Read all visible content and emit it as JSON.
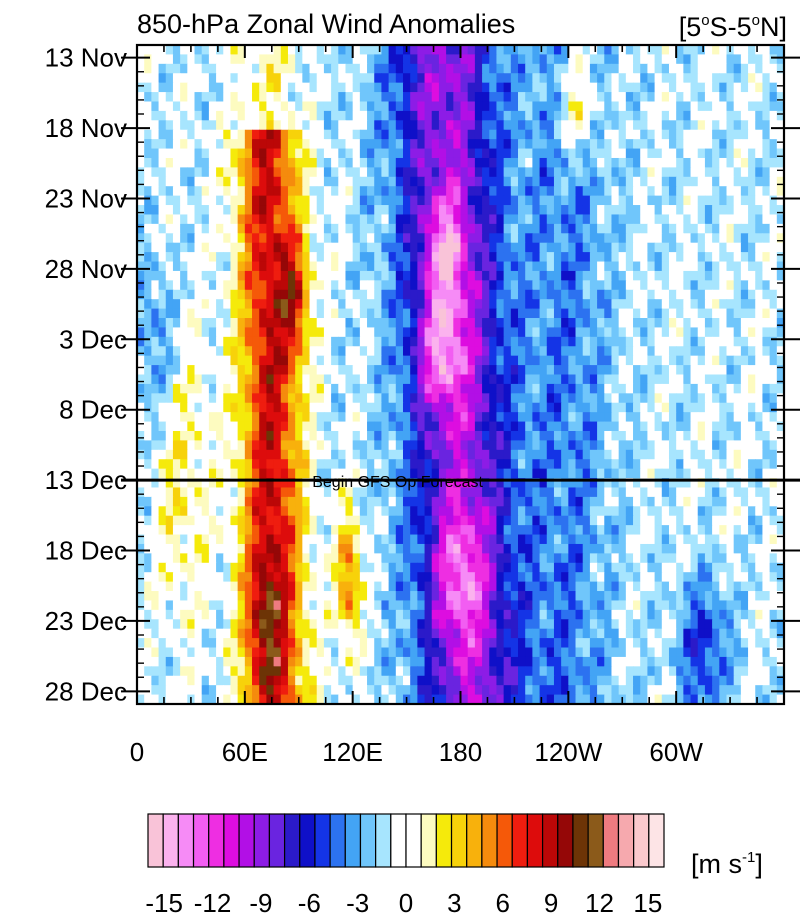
{
  "title": "850-hPa Zonal Wind Anomalies",
  "region": "[5°S-5°N]",
  "region_parts": {
    "pre": "[5",
    "lat1": "S-5",
    "post": "N]",
    "degree": "o"
  },
  "units": {
    "base": "[m s",
    "exp": "-1",
    "close": "]"
  },
  "forecast_label": "Begin GFS Op Forecast",
  "colors": {
    "bar_colors": [
      "#f9c3d8",
      "#fbb2ee",
      "#f68bf6",
      "#f25df2",
      "#ee2ee2",
      "#dd0de0",
      "#b20fe6",
      "#8d1ce6",
      "#6a24e0",
      "#2b1ac9",
      "#0f10c8",
      "#1434e6",
      "#2c72f0",
      "#43a4f5",
      "#70c6fb",
      "#a7e5fe",
      "#ffffff",
      "#ffffff",
      "#fdfbc0",
      "#f5ea0b",
      "#f7d20a",
      "#f8b10c",
      "#f58b0d",
      "#f55909",
      "#ef1d0f",
      "#dd0c0c",
      "#bb0707",
      "#950707",
      "#6d3406",
      "#8b5a1a",
      "#ef7b80",
      "#f6a9ae",
      "#fac9cd",
      "#fde4e6"
    ],
    "axis": "#000000"
  },
  "chart_data": {
    "type": "heatmap",
    "title": "850-hPa Zonal Wind Anomalies",
    "region": "[5°S-5°N]",
    "xlabel": "",
    "ylabel": "",
    "x_ticks": [
      "0",
      "60E",
      "120E",
      "180",
      "120W",
      "60W"
    ],
    "x_tick_lon": [
      0,
      60,
      120,
      180,
      240,
      300
    ],
    "xlim": [
      0,
      360
    ],
    "y_ticks": [
      "13 Nov",
      "18 Nov",
      "23 Nov",
      "28 Nov",
      "3 Dec",
      "8 Dec",
      "13 Dec",
      "18 Dec",
      "23 Dec",
      "28 Dec"
    ],
    "y_tick_day": [
      0,
      5,
      10,
      15,
      20,
      25,
      30,
      35,
      40,
      45
    ],
    "ylim_days": [
      -0.9,
      45.9
    ],
    "forecast_start_day": 30,
    "forecast_label": "Begin GFS Op Forecast",
    "colorbar": {
      "labels": [
        "-15",
        "-12",
        "-9",
        "-6",
        "-3",
        "0",
        "3",
        "6",
        "9",
        "12",
        "15"
      ],
      "label_values": [
        -15,
        -12,
        -9,
        -6,
        -3,
        0,
        3,
        6,
        9,
        12,
        15
      ],
      "min": -16,
      "max": 16,
      "step": 1,
      "units": "[m s-1]"
    },
    "features": [
      {
        "kind": "westerly",
        "peak": 12,
        "lon": [
          55,
          100
        ],
        "days": [
          7,
          45
        ]
      },
      {
        "kind": "easterly",
        "peak": -14,
        "lon": [
          125,
          230
        ],
        "days": [
          0,
          45
        ]
      },
      {
        "kind": "westerly",
        "peak": 8,
        "lon": [
          105,
          130
        ],
        "days": [
          32,
          45
        ]
      }
    ]
  }
}
